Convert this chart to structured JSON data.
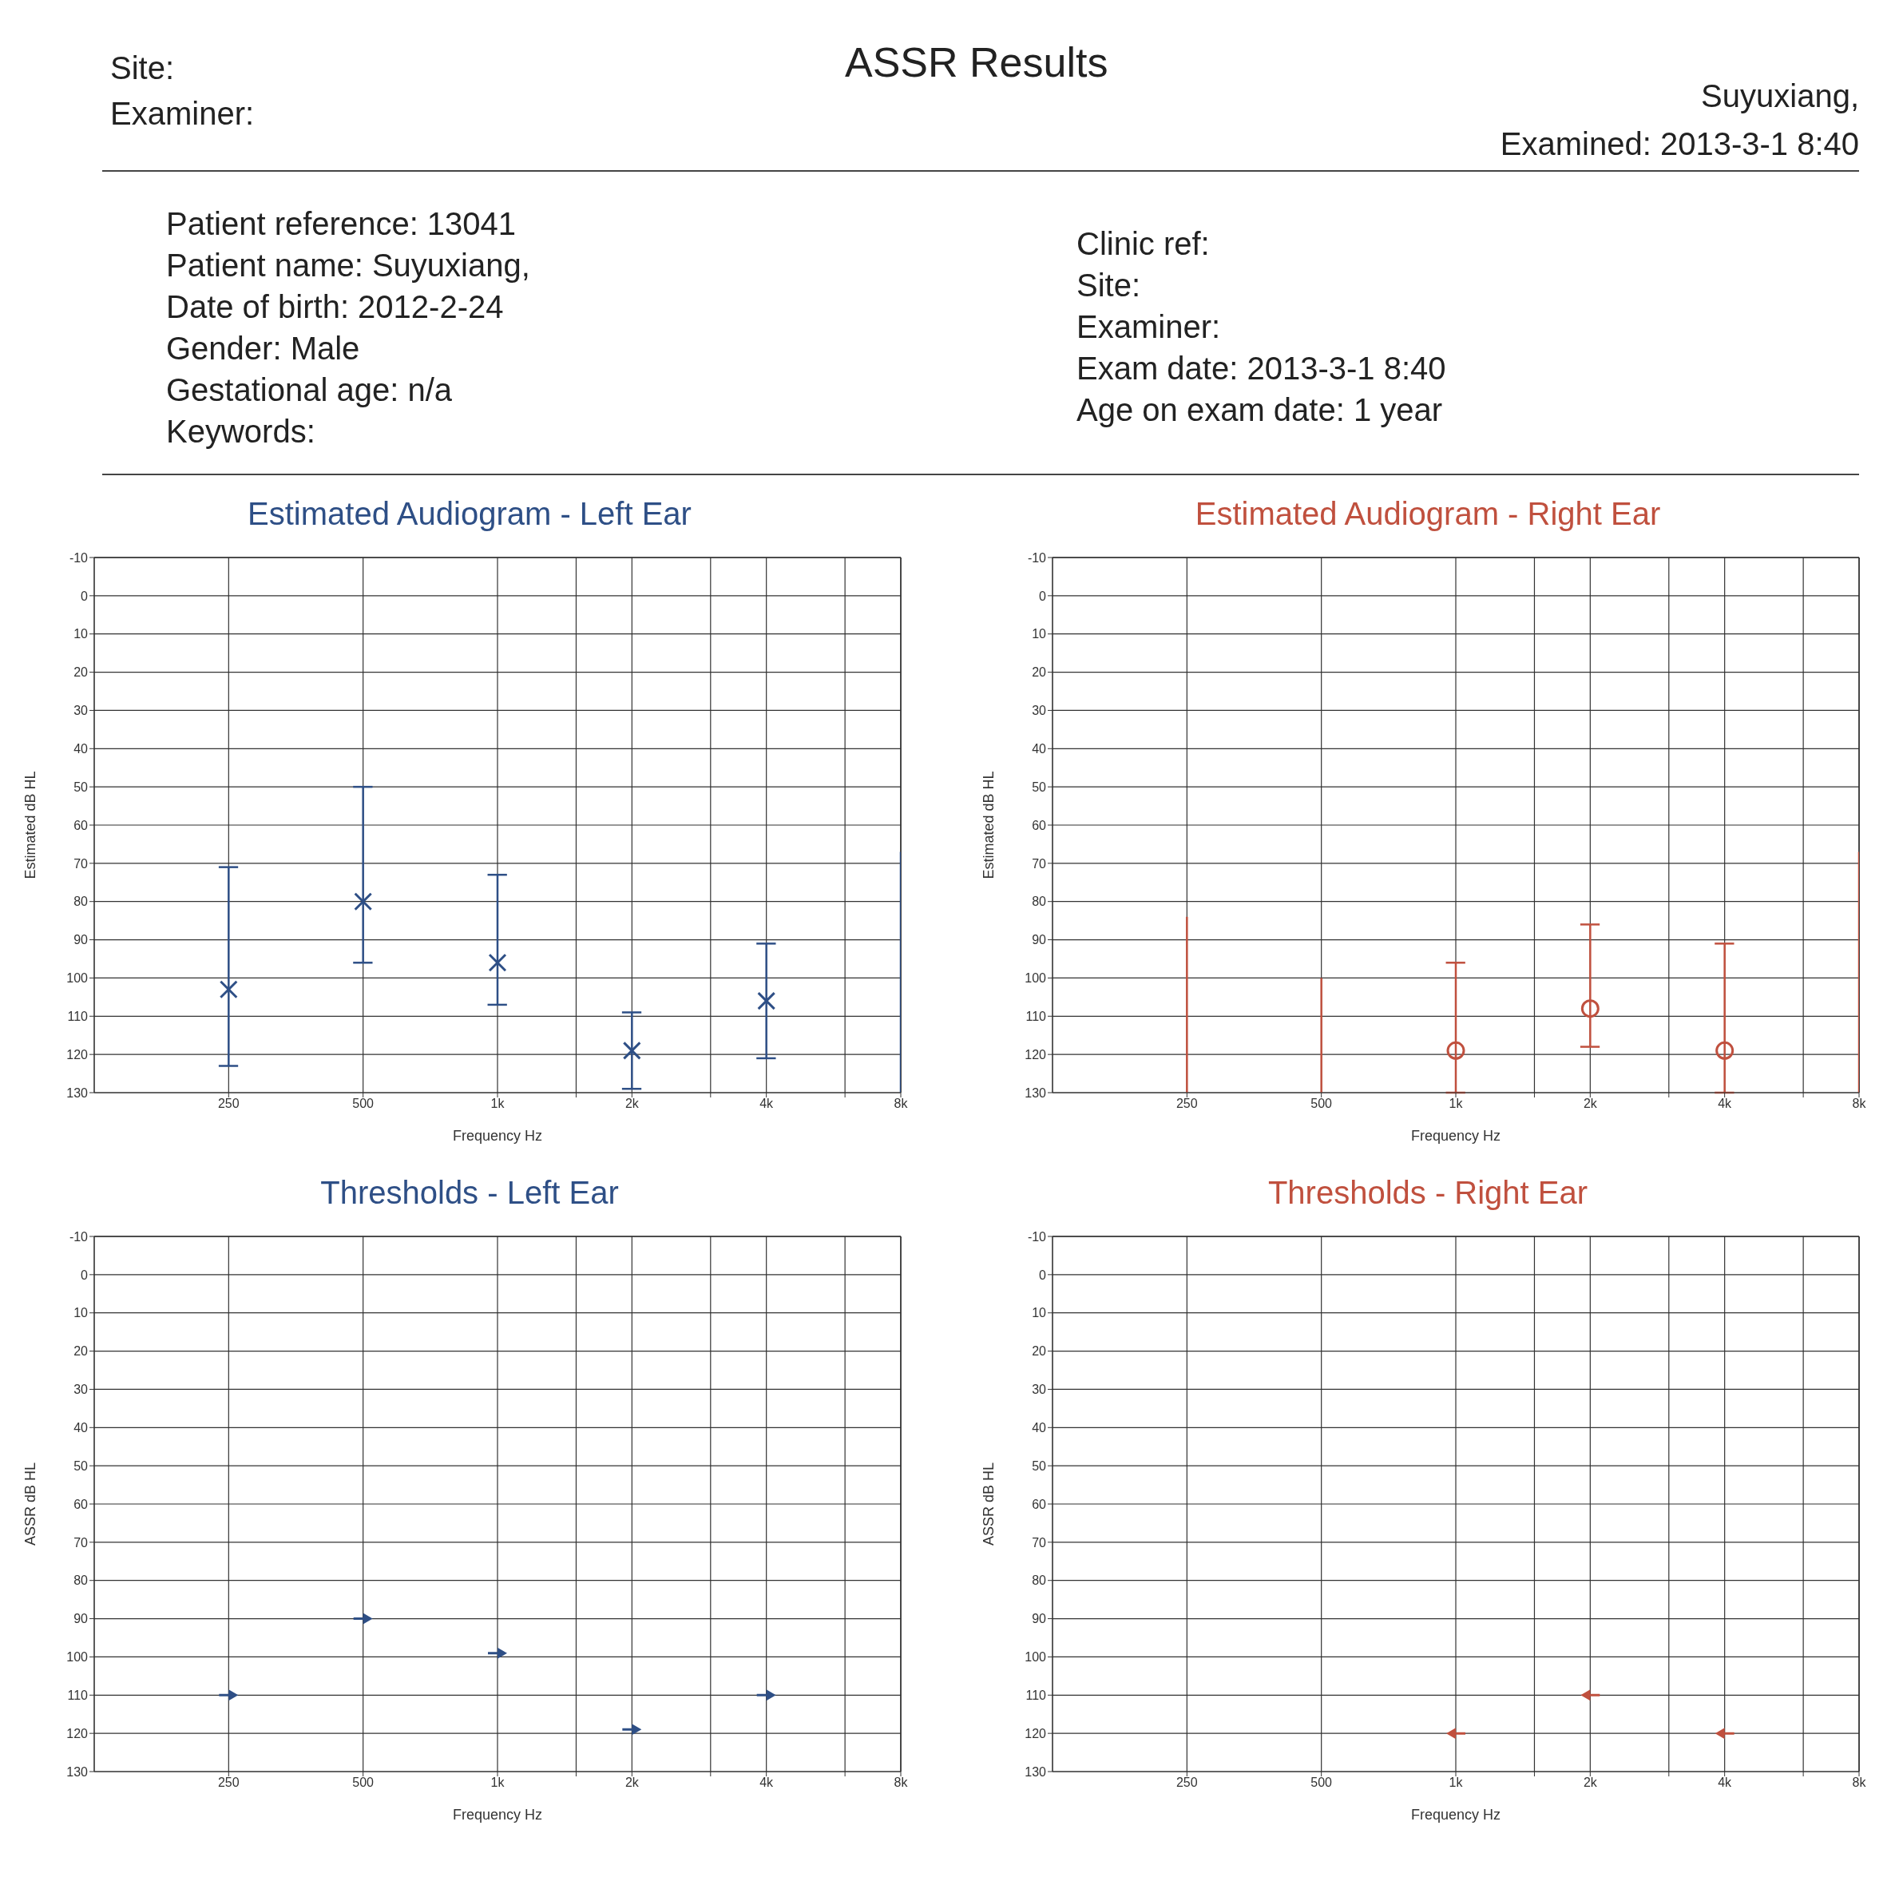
{
  "chart_data": [
    {
      "type": "other",
      "title": "ASSR Results",
      "annotations": [
        "Site:",
        "Examiner:",
        "Suyuxiang,",
        "Examined: 2013-3-1 8:40",
        "Patient reference:  13041",
        "Patient name:  Suyuxiang,",
        "Date of birth:  2012-2-24",
        "Gender:  Male",
        "Gestational age:  n/a",
        "Keywords:",
        "Clinic ref:",
        "Site:",
        "Examiner:",
        "Exam date:  2013-3-1 8:40",
        "Age on exam date:  1 year"
      ]
    },
    {
      "type": "scatter",
      "title": "Estimated Audiogram - Left Ear",
      "xlabel": "Frequency Hz",
      "ylabel": "Estimated dB HL",
      "series": [
        {
          "color": "#2e4f86",
          "x": [
            250,
            500,
            1000,
            2000,
            4000
          ],
          "values": [
            103,
            80,
            96,
            119,
            106
          ],
          "errors": [
            [
              71,
              123
            ],
            [
              50,
              96
            ],
            [
              73,
              107
            ],
            [
              109,
              129
            ],
            [
              91,
              121
            ]
          ]
        },
        {
          "type": "line",
          "color": "#2e4f86",
          "marker": "none",
          "x": [
            8000,
            8000
          ],
          "values": [
            67,
            130
          ]
        }
      ],
      "marker": "cross",
      "log": "x",
      "xlim": [
        125,
        8000
      ],
      "xticks": [
        {
          "value": 250,
          "label": "250"
        },
        {
          "value": 500,
          "label": "500"
        },
        {
          "value": 1000,
          "label": "1k"
        },
        {
          "value": 1500,
          "label": null
        },
        {
          "value": 2000,
          "label": "2k"
        },
        {
          "value": 3000,
          "label": null
        },
        {
          "value": 4000,
          "label": "4k"
        },
        {
          "value": 6000,
          "label": null
        },
        {
          "value": 8000,
          "label": "8k"
        }
      ],
      "ylim": [
        130,
        -10
      ],
      "yticks": [
        -10,
        0,
        10,
        20,
        30,
        40,
        50,
        60,
        70,
        80,
        90,
        100,
        110,
        120,
        130
      ],
      "grid": true
    },
    {
      "type": "scatter",
      "title": "Estimated Audiogram - Right Ear",
      "xlabel": "Frequency Hz",
      "ylabel": "Estimated dB HL",
      "series": [
        {
          "color": "#c0503e",
          "x": [
            1000,
            2000,
            4000
          ],
          "values": [
            119,
            108,
            119
          ],
          "errors": [
            [
              96,
              130
            ],
            [
              86,
              118
            ],
            [
              91,
              130
            ]
          ]
        },
        {
          "type": "line",
          "color": "#c0503e",
          "marker": "none",
          "x": [
            250,
            250
          ],
          "values": [
            84,
            130
          ]
        },
        {
          "type": "line",
          "color": "#c0503e",
          "marker": "none",
          "x": [
            500,
            500
          ],
          "values": [
            100,
            130
          ]
        },
        {
          "type": "line",
          "color": "#c0503e",
          "marker": "none",
          "x": [
            8000,
            8000
          ],
          "values": [
            67,
            130
          ]
        }
      ],
      "marker": "circle",
      "log": "x",
      "xlim": [
        125,
        8000
      ],
      "xticks": [
        {
          "value": 250,
          "label": "250"
        },
        {
          "value": 500,
          "label": "500"
        },
        {
          "value": 1000,
          "label": "1k"
        },
        {
          "value": 1500,
          "label": null
        },
        {
          "value": 2000,
          "label": "2k"
        },
        {
          "value": 3000,
          "label": null
        },
        {
          "value": 4000,
          "label": "4k"
        },
        {
          "value": 6000,
          "label": null
        },
        {
          "value": 8000,
          "label": "8k"
        }
      ],
      "ylim": [
        130,
        -10
      ],
      "yticks": [
        -10,
        0,
        10,
        20,
        30,
        40,
        50,
        60,
        70,
        80,
        90,
        100,
        110,
        120,
        130
      ],
      "grid": true
    },
    {
      "type": "scatter",
      "title": "Thresholds - Left Ear",
      "xlabel": "Frequency Hz",
      "ylabel": "ASSR dB HL",
      "x": [
        250,
        500,
        1000,
        2000,
        4000
      ],
      "series": [
        {
          "color": "#2e4f86",
          "values": [
            110,
            90,
            99,
            119,
            110
          ]
        }
      ],
      "marker": "triangle",
      "log": "x",
      "xlim": [
        125,
        8000
      ],
      "xticks": [
        {
          "value": 250,
          "label": "250"
        },
        {
          "value": 500,
          "label": "500"
        },
        {
          "value": 1000,
          "label": "1k"
        },
        {
          "value": 1500,
          "label": null
        },
        {
          "value": 2000,
          "label": "2k"
        },
        {
          "value": 3000,
          "label": null
        },
        {
          "value": 4000,
          "label": "4k"
        },
        {
          "value": 6000,
          "label": null
        },
        {
          "value": 8000,
          "label": "8k"
        }
      ],
      "ylim": [
        130,
        -10
      ],
      "yticks": [
        -10,
        0,
        10,
        20,
        30,
        40,
        50,
        60,
        70,
        80,
        90,
        100,
        110,
        120,
        130
      ],
      "grid": true
    },
    {
      "type": "scatter",
      "title": "Thresholds - Right Ear",
      "xlabel": "Frequency Hz",
      "ylabel": "ASSR dB HL",
      "x": [
        1000,
        2000,
        4000
      ],
      "series": [
        {
          "color": "#c0503e",
          "values": [
            120,
            110,
            120
          ]
        }
      ],
      "marker": "triangle",
      "log": "x",
      "xlim": [
        125,
        8000
      ],
      "xticks": [
        {
          "value": 250,
          "label": "250"
        },
        {
          "value": 500,
          "label": "500"
        },
        {
          "value": 1000,
          "label": "1k"
        },
        {
          "value": 1500,
          "label": null
        },
        {
          "value": 2000,
          "label": "2k"
        },
        {
          "value": 3000,
          "label": null
        },
        {
          "value": 4000,
          "label": "4k"
        },
        {
          "value": 6000,
          "label": null
        },
        {
          "value": 8000,
          "label": "8k"
        }
      ],
      "ylim": [
        130,
        -10
      ],
      "yticks": [
        -10,
        0,
        10,
        20,
        30,
        40,
        50,
        60,
        70,
        80,
        90,
        100,
        110,
        120,
        130
      ],
      "grid": true
    }
  ]
}
